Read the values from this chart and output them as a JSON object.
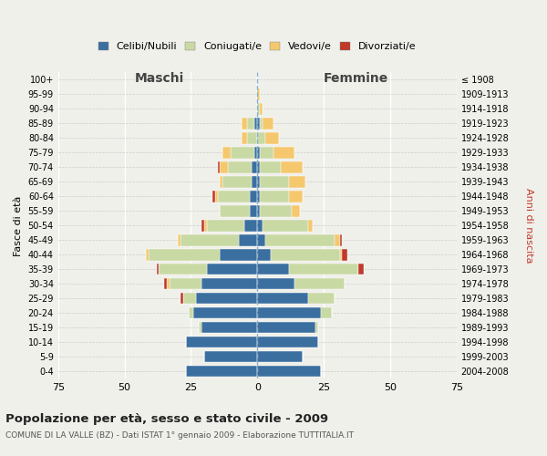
{
  "age_groups": [
    "0-4",
    "5-9",
    "10-14",
    "15-19",
    "20-24",
    "25-29",
    "30-34",
    "35-39",
    "40-44",
    "45-49",
    "50-54",
    "55-59",
    "60-64",
    "65-69",
    "70-74",
    "75-79",
    "80-84",
    "85-89",
    "90-94",
    "95-99",
    "100+"
  ],
  "birth_years": [
    "2004-2008",
    "1999-2003",
    "1994-1998",
    "1989-1993",
    "1984-1988",
    "1979-1983",
    "1974-1978",
    "1969-1973",
    "1964-1968",
    "1959-1963",
    "1954-1958",
    "1949-1953",
    "1944-1948",
    "1939-1943",
    "1934-1938",
    "1929-1933",
    "1924-1928",
    "1919-1923",
    "1914-1918",
    "1909-1913",
    "≤ 1908"
  ],
  "males": {
    "celibi": [
      27,
      20,
      27,
      21,
      24,
      23,
      21,
      19,
      14,
      7,
      5,
      3,
      3,
      2,
      2,
      1,
      0,
      1,
      0,
      0,
      0
    ],
    "coniugati": [
      0,
      0,
      0,
      1,
      2,
      5,
      12,
      18,
      27,
      22,
      14,
      11,
      12,
      11,
      9,
      9,
      4,
      3,
      0,
      0,
      0
    ],
    "vedovi": [
      0,
      0,
      0,
      0,
      0,
      0,
      1,
      0,
      1,
      1,
      1,
      0,
      1,
      1,
      3,
      3,
      2,
      2,
      0,
      0,
      0
    ],
    "divorziati": [
      0,
      0,
      0,
      0,
      0,
      1,
      1,
      1,
      0,
      0,
      1,
      0,
      1,
      0,
      1,
      0,
      0,
      0,
      0,
      0,
      0
    ]
  },
  "females": {
    "nubili": [
      24,
      17,
      23,
      22,
      24,
      19,
      14,
      12,
      5,
      3,
      2,
      1,
      1,
      1,
      1,
      1,
      0,
      1,
      0,
      0,
      0
    ],
    "coniugate": [
      0,
      0,
      0,
      1,
      4,
      10,
      19,
      26,
      26,
      26,
      17,
      12,
      11,
      11,
      8,
      5,
      3,
      1,
      1,
      0,
      0
    ],
    "vedove": [
      0,
      0,
      0,
      0,
      0,
      0,
      0,
      0,
      1,
      2,
      2,
      3,
      5,
      6,
      8,
      8,
      5,
      4,
      1,
      1,
      0
    ],
    "divorziate": [
      0,
      0,
      0,
      0,
      0,
      0,
      0,
      2,
      2,
      1,
      0,
      0,
      0,
      0,
      0,
      0,
      0,
      0,
      0,
      0,
      0
    ]
  },
  "colors": {
    "celibi": "#3b6fa0",
    "coniugati": "#c9d9a4",
    "vedovi": "#f5c86e",
    "divorziati": "#c0392b"
  },
  "xlim": 75,
  "title": "Popolazione per età, sesso e stato civile - 2009",
  "subtitle": "COMUNE DI LA VALLE (BZ) - Dati ISTAT 1° gennaio 2009 - Elaborazione TUTTITALIA.IT",
  "ylabel_left": "Fasce di età",
  "ylabel_right": "Anni di nascita",
  "xlabel_left": "Maschi",
  "xlabel_right": "Femmine",
  "legend_labels": [
    "Celibi/Nubili",
    "Coniugati/e",
    "Vedovi/e",
    "Divorziati/e"
  ],
  "bg_color": "#f0f0eb"
}
